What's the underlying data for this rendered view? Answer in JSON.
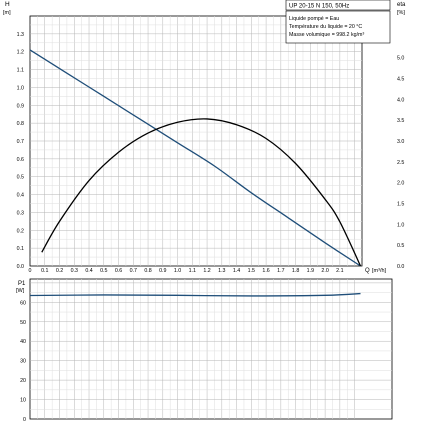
{
  "chart_data": [
    {
      "type": "line",
      "title": "UP 20-15 N 150, 50Hz",
      "ylabel": "H",
      "yunit": "[m]",
      "y2label": "eta",
      "y2unit": "[%]",
      "xlabel": "Q",
      "xunit": "[m³/h]",
      "info_lines": [
        "Liquide pompé = Eau",
        "Température du liquide = 20 °C",
        "Masse volumique = 998.2 kg/m³"
      ],
      "xlim": [
        0,
        2.25
      ],
      "ylim": [
        0,
        1.4
      ],
      "y2lim": [
        0,
        6.0
      ],
      "x_ticks": [
        "0",
        "0.1",
        "0.2",
        "0.3",
        "0.4",
        "0.5",
        "0.6",
        "0.7",
        "0.8",
        "0.9",
        "1.0",
        "1.1",
        "1.2",
        "1.3",
        "1.4",
        "1.5",
        "1.6",
        "1.7",
        "1.8",
        "1.9",
        "2.0",
        "2.1"
      ],
      "y_ticks": [
        "0.0",
        "0.1",
        "0.2",
        "0.3",
        "0.4",
        "0.5",
        "0.6",
        "0.7",
        "0.8",
        "0.9",
        "1.0",
        "1.1",
        "1.2",
        "1.3"
      ],
      "y2_ticks": [
        "0.0",
        "0.5",
        "1.0",
        "1.5",
        "2.0",
        "2.5",
        "3.0",
        "3.5",
        "4.0",
        "4.5",
        "5.0"
      ],
      "grid": true,
      "series": [
        {
          "color": "#1f4e79",
          "axis": "left",
          "x": [
            0,
            0.25,
            0.5,
            0.75,
            1.0,
            1.25,
            1.5,
            1.75,
            2.0,
            2.24
          ],
          "y": [
            1.21,
            1.08,
            0.95,
            0.82,
            0.69,
            0.56,
            0.41,
            0.27,
            0.13,
            0.0
          ]
        },
        {
          "color": "#000000",
          "axis": "right",
          "x": [
            0.08,
            0.2,
            0.4,
            0.6,
            0.8,
            1.0,
            1.2,
            1.4,
            1.6,
            1.8,
            2.0,
            2.1,
            2.24
          ],
          "y": [
            0.33,
            1.07,
            2.05,
            2.73,
            3.19,
            3.45,
            3.53,
            3.39,
            3.06,
            2.46,
            1.6,
            1.06,
            0.0
          ]
        }
      ]
    },
    {
      "type": "line",
      "ylabel": "P1",
      "yunit": "[W]",
      "xlim": [
        0,
        2.25
      ],
      "ylim": [
        0,
        72
      ],
      "y_ticks": [
        "0",
        "10",
        "20",
        "30",
        "40",
        "50",
        "60"
      ],
      "grid": true,
      "series": [
        {
          "color": "#1f4e79",
          "x": [
            0,
            0.5,
            1.0,
            1.5,
            2.0,
            2.24
          ],
          "y": [
            63.5,
            63.8,
            63.6,
            63.3,
            63.6,
            64.5
          ]
        }
      ]
    }
  ]
}
